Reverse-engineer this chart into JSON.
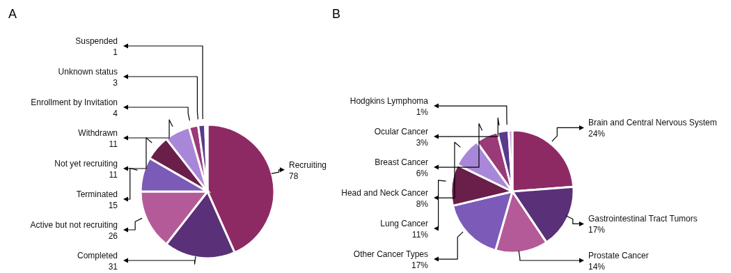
{
  "chart_data": [
    {
      "type": "pie",
      "title": "A",
      "categories": [
        "Recruiting",
        "Completed",
        "Active but not recruiting",
        "Terminated",
        "Not yet recruiting",
        "Withdrawn",
        "Enrollment by Invitation",
        "Unknown status",
        "Suspended"
      ],
      "values": [
        78,
        31,
        26,
        15,
        11,
        11,
        4,
        3,
        1
      ],
      "colors": [
        "#8e2a63",
        "#5a3078",
        "#b45a98",
        "#7b5ab8",
        "#6a1e4a",
        "#a987d8",
        "#9a3a78",
        "#5a3a8a",
        "#c89ad8"
      ],
      "data_labels": true
    },
    {
      "type": "pie",
      "title": "B",
      "categories": [
        "Brain and Central Nervous System",
        "Gastrointestinal Tract Tumors",
        "Prostate Cancer",
        "Other Cancer Types",
        "Lung Cancer",
        "Head and Neck Cancer",
        "Breast Cancer",
        "Ocular Cancer",
        "Hodgkins Lymphoma"
      ],
      "values": [
        24,
        17,
        14,
        17,
        11,
        8,
        6,
        3,
        1
      ],
      "value_labels": [
        "24%",
        "17%",
        "14%",
        "17%",
        "11%",
        "8%",
        "6%",
        "3%",
        "1%"
      ],
      "colors": [
        "#8e2a63",
        "#5a3078",
        "#b45a98",
        "#7b5ab8",
        "#6a1e4a",
        "#a987d8",
        "#9a3a78",
        "#5a3a8a",
        "#c89ad8"
      ]
    }
  ]
}
